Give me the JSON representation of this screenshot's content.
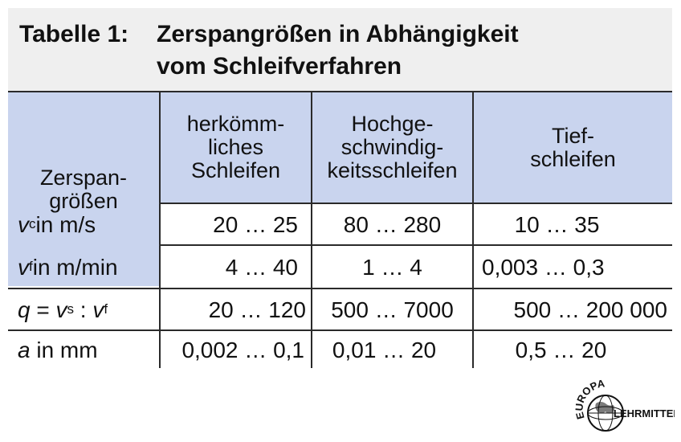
{
  "title": {
    "number": "Tabelle 1:",
    "line1": "Zerspangrößen in Abhängigkeit",
    "line2": "vom Schleifverfahren"
  },
  "headers": {
    "col1": [
      "Zerspan-",
      "größen"
    ],
    "col2": [
      "herkömm-",
      "liches",
      "Schleifen"
    ],
    "col3": [
      "Hochge-",
      "schwindig-",
      "keitsschleifen"
    ],
    "col4": [
      "Tief-",
      "schleifen"
    ]
  },
  "rows": [
    {
      "label_var": "v",
      "label_sub": "c",
      "label_rest": " in m/s",
      "values": [
        "20 … 25",
        "80 … 280",
        "10 … 35"
      ]
    },
    {
      "label_var": "v",
      "label_sub": "f",
      "label_rest": " in m/min",
      "values": [
        "4 … 40",
        "1 … 4",
        "0,003 … 0,3"
      ]
    },
    {
      "label_var": "q",
      "label_eq": " = ",
      "label_var2": "v",
      "label_sub2": "s",
      "label_colon": " : ",
      "label_var3": "v",
      "label_sub3": "f",
      "values": [
        "20 … 120",
        "500 … 7000",
        "500 … 200 000"
      ]
    },
    {
      "label_var": "a",
      "label_rest": " in mm",
      "values": [
        "0,002 … 0,1",
        "0,01 … 20",
        "0,5 … 20"
      ]
    }
  ],
  "logo": {
    "top": "EUROPA",
    "bottom": "LEHRMITTEL"
  },
  "colors": {
    "header_bg": "#c9d4ee",
    "title_bg": "#efefef",
    "rule": "#2a2a2a"
  }
}
